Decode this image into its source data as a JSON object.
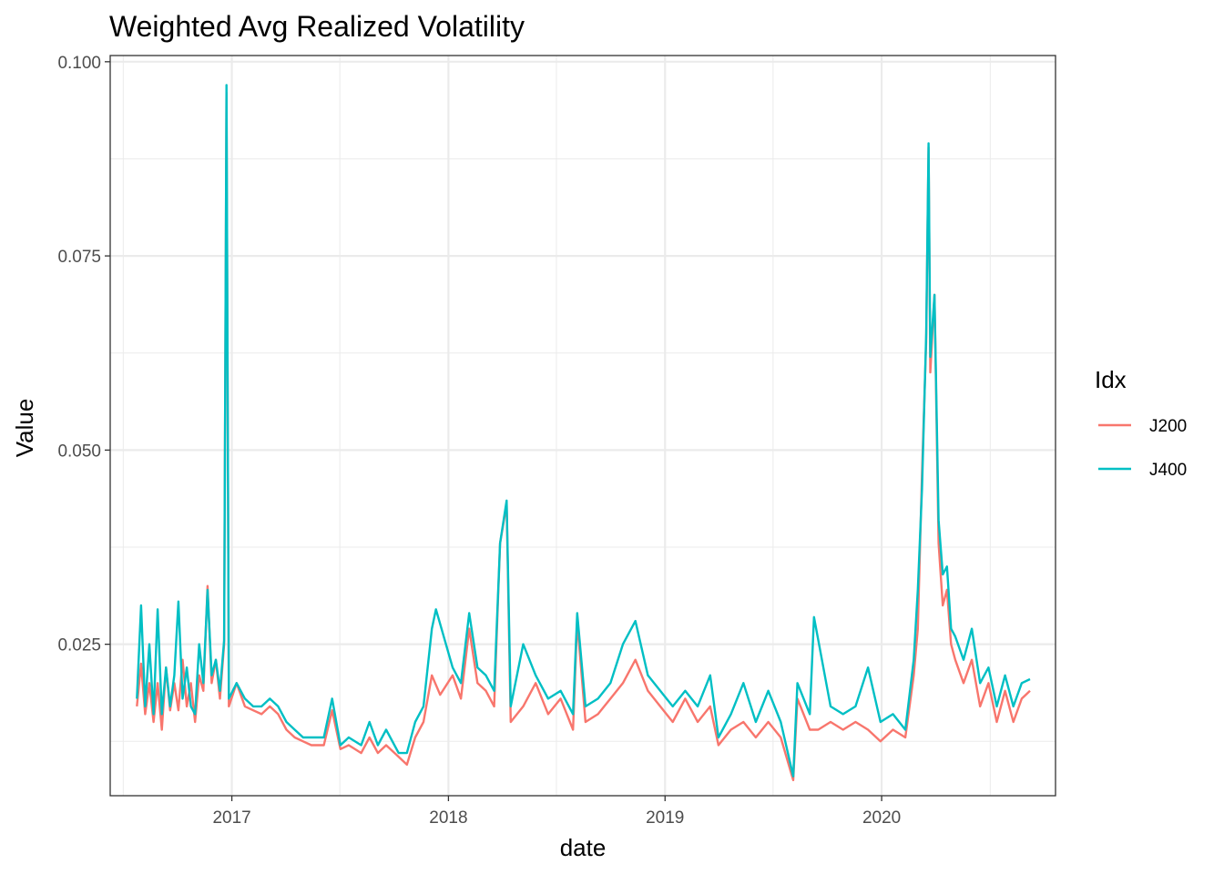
{
  "chart_data": {
    "type": "line",
    "title": "Weighted Avg Realized Volatility",
    "xlabel": "date",
    "ylabel": "Value",
    "xlim": [
      "2016-06-10",
      "2020-10-20"
    ],
    "ylim": [
      0.0055,
      0.1008
    ],
    "x_ticks": [
      {
        "date": "2017-01-01",
        "label": "2017"
      },
      {
        "date": "2018-01-01",
        "label": "2018"
      },
      {
        "date": "2019-01-01",
        "label": "2019"
      },
      {
        "date": "2020-01-01",
        "label": "2020"
      }
    ],
    "x_minor_dates": [
      "2016-07-02",
      "2017-07-02",
      "2018-07-02",
      "2019-07-02",
      "2020-07-02"
    ],
    "y_ticks": [
      {
        "value": 0.025,
        "label": "0.025"
      },
      {
        "value": 0.05,
        "label": "0.050"
      },
      {
        "value": 0.075,
        "label": "0.075"
      },
      {
        "value": 0.1,
        "label": "0.100"
      }
    ],
    "y_minor": [
      0.0125,
      0.0375,
      0.0625,
      0.0875
    ],
    "grid": true,
    "legend": {
      "title": "Idx",
      "placement": "right"
    },
    "series": [
      {
        "name": "J200",
        "color": "#F8766D",
        "points": [
          [
            "2016-07-25",
            0.017
          ],
          [
            "2016-08-01",
            0.0225
          ],
          [
            "2016-08-08",
            0.016
          ],
          [
            "2016-08-15",
            0.02
          ],
          [
            "2016-08-22",
            0.015
          ],
          [
            "2016-08-29",
            0.02
          ],
          [
            "2016-09-05",
            0.014
          ],
          [
            "2016-09-12",
            0.022
          ],
          [
            "2016-09-19",
            0.0165
          ],
          [
            "2016-09-26",
            0.02
          ],
          [
            "2016-10-03",
            0.0165
          ],
          [
            "2016-10-10",
            0.023
          ],
          [
            "2016-10-17",
            0.017
          ],
          [
            "2016-10-24",
            0.02
          ],
          [
            "2016-10-31",
            0.015
          ],
          [
            "2016-11-07",
            0.021
          ],
          [
            "2016-11-14",
            0.019
          ],
          [
            "2016-11-21",
            0.0325
          ],
          [
            "2016-11-28",
            0.02
          ],
          [
            "2016-12-05",
            0.023
          ],
          [
            "2016-12-12",
            0.018
          ],
          [
            "2016-12-19",
            0.025
          ],
          [
            "2016-12-23",
            0.096
          ],
          [
            "2016-12-27",
            0.017
          ],
          [
            "2017-01-09",
            0.02
          ],
          [
            "2017-01-23",
            0.017
          ],
          [
            "2017-02-06",
            0.0165
          ],
          [
            "2017-02-20",
            0.016
          ],
          [
            "2017-03-06",
            0.017
          ],
          [
            "2017-03-20",
            0.016
          ],
          [
            "2017-04-03",
            0.014
          ],
          [
            "2017-04-17",
            0.013
          ],
          [
            "2017-05-01",
            0.0125
          ],
          [
            "2017-05-15",
            0.012
          ],
          [
            "2017-06-05",
            0.012
          ],
          [
            "2017-06-19",
            0.0165
          ],
          [
            "2017-07-03",
            0.0115
          ],
          [
            "2017-07-17",
            0.012
          ],
          [
            "2017-08-07",
            0.011
          ],
          [
            "2017-08-21",
            0.013
          ],
          [
            "2017-09-04",
            0.011
          ],
          [
            "2017-09-18",
            0.012
          ],
          [
            "2017-10-09",
            0.0105
          ],
          [
            "2017-10-23",
            0.0095
          ],
          [
            "2017-11-06",
            0.013
          ],
          [
            "2017-11-20",
            0.015
          ],
          [
            "2017-12-04",
            0.021
          ],
          [
            "2017-12-18",
            0.0185
          ],
          [
            "2018-01-08",
            0.021
          ],
          [
            "2018-01-22",
            0.018
          ],
          [
            "2018-02-05",
            0.027
          ],
          [
            "2018-02-19",
            0.02
          ],
          [
            "2018-03-05",
            0.019
          ],
          [
            "2018-03-19",
            0.017
          ],
          [
            "2018-03-29",
            0.038
          ],
          [
            "2018-04-09",
            0.043
          ],
          [
            "2018-04-16",
            0.015
          ],
          [
            "2018-05-07",
            0.017
          ],
          [
            "2018-05-28",
            0.02
          ],
          [
            "2018-06-18",
            0.016
          ],
          [
            "2018-07-09",
            0.018
          ],
          [
            "2018-07-30",
            0.014
          ],
          [
            "2018-08-06",
            0.028
          ],
          [
            "2018-08-20",
            0.015
          ],
          [
            "2018-09-10",
            0.016
          ],
          [
            "2018-10-01",
            0.018
          ],
          [
            "2018-10-22",
            0.02
          ],
          [
            "2018-11-12",
            0.023
          ],
          [
            "2018-12-03",
            0.019
          ],
          [
            "2018-12-24",
            0.017
          ],
          [
            "2019-01-14",
            0.015
          ],
          [
            "2019-02-04",
            0.018
          ],
          [
            "2019-02-25",
            0.015
          ],
          [
            "2019-03-18",
            0.017
          ],
          [
            "2019-04-01",
            0.012
          ],
          [
            "2019-04-22",
            0.014
          ],
          [
            "2019-05-13",
            0.015
          ],
          [
            "2019-06-03",
            0.013
          ],
          [
            "2019-06-24",
            0.015
          ],
          [
            "2019-07-15",
            0.013
          ],
          [
            "2019-08-05",
            0.0075
          ],
          [
            "2019-08-12",
            0.018
          ],
          [
            "2019-09-02",
            0.014
          ],
          [
            "2019-09-16",
            0.014
          ],
          [
            "2019-10-07",
            0.015
          ],
          [
            "2019-10-28",
            0.014
          ],
          [
            "2019-11-18",
            0.015
          ],
          [
            "2019-12-09",
            0.014
          ],
          [
            "2019-12-30",
            0.0125
          ],
          [
            "2020-01-20",
            0.014
          ],
          [
            "2020-02-10",
            0.013
          ],
          [
            "2020-02-24",
            0.021
          ],
          [
            "2020-03-02",
            0.027
          ],
          [
            "2020-03-09",
            0.047
          ],
          [
            "2020-03-16",
            0.064
          ],
          [
            "2020-03-20",
            0.089
          ],
          [
            "2020-03-23",
            0.06
          ],
          [
            "2020-03-30",
            0.07
          ],
          [
            "2020-04-06",
            0.038
          ],
          [
            "2020-04-13",
            0.03
          ],
          [
            "2020-04-20",
            0.032
          ],
          [
            "2020-04-27",
            0.025
          ],
          [
            "2020-05-04",
            0.023
          ],
          [
            "2020-05-18",
            0.02
          ],
          [
            "2020-06-01",
            0.023
          ],
          [
            "2020-06-15",
            0.017
          ],
          [
            "2020-06-29",
            0.02
          ],
          [
            "2020-07-13",
            0.015
          ],
          [
            "2020-07-27",
            0.019
          ],
          [
            "2020-08-10",
            0.015
          ],
          [
            "2020-08-24",
            0.018
          ],
          [
            "2020-09-07",
            0.019
          ]
        ]
      },
      {
        "name": "J400",
        "color": "#00BFC4",
        "points": [
          [
            "2016-07-25",
            0.018
          ],
          [
            "2016-08-01",
            0.03
          ],
          [
            "2016-08-08",
            0.017
          ],
          [
            "2016-08-15",
            0.025
          ],
          [
            "2016-08-22",
            0.016
          ],
          [
            "2016-08-29",
            0.0295
          ],
          [
            "2016-09-05",
            0.016
          ],
          [
            "2016-09-12",
            0.022
          ],
          [
            "2016-09-19",
            0.017
          ],
          [
            "2016-09-26",
            0.021
          ],
          [
            "2016-10-03",
            0.0305
          ],
          [
            "2016-10-10",
            0.018
          ],
          [
            "2016-10-17",
            0.022
          ],
          [
            "2016-10-24",
            0.017
          ],
          [
            "2016-10-31",
            0.016
          ],
          [
            "2016-11-07",
            0.025
          ],
          [
            "2016-11-14",
            0.02
          ],
          [
            "2016-11-21",
            0.032
          ],
          [
            "2016-11-28",
            0.021
          ],
          [
            "2016-12-05",
            0.023
          ],
          [
            "2016-12-12",
            0.019
          ],
          [
            "2016-12-19",
            0.0255
          ],
          [
            "2016-12-23",
            0.097
          ],
          [
            "2016-12-27",
            0.018
          ],
          [
            "2017-01-09",
            0.02
          ],
          [
            "2017-01-23",
            0.018
          ],
          [
            "2017-02-06",
            0.017
          ],
          [
            "2017-02-20",
            0.017
          ],
          [
            "2017-03-06",
            0.018
          ],
          [
            "2017-03-20",
            0.017
          ],
          [
            "2017-04-03",
            0.015
          ],
          [
            "2017-04-17",
            0.014
          ],
          [
            "2017-05-01",
            0.013
          ],
          [
            "2017-05-15",
            0.013
          ],
          [
            "2017-06-05",
            0.013
          ],
          [
            "2017-06-19",
            0.018
          ],
          [
            "2017-07-03",
            0.012
          ],
          [
            "2017-07-17",
            0.013
          ],
          [
            "2017-08-07",
            0.012
          ],
          [
            "2017-08-21",
            0.015
          ],
          [
            "2017-09-04",
            0.012
          ],
          [
            "2017-09-18",
            0.014
          ],
          [
            "2017-10-09",
            0.011
          ],
          [
            "2017-10-23",
            0.011
          ],
          [
            "2017-11-06",
            0.015
          ],
          [
            "2017-11-20",
            0.017
          ],
          [
            "2017-12-04",
            0.027
          ],
          [
            "2017-12-11",
            0.0295
          ],
          [
            "2018-01-08",
            0.022
          ],
          [
            "2018-01-22",
            0.02
          ],
          [
            "2018-02-05",
            0.029
          ],
          [
            "2018-02-19",
            0.022
          ],
          [
            "2018-03-05",
            0.021
          ],
          [
            "2018-03-19",
            0.019
          ],
          [
            "2018-03-29",
            0.038
          ],
          [
            "2018-04-09",
            0.0435
          ],
          [
            "2018-04-16",
            0.017
          ],
          [
            "2018-05-07",
            0.025
          ],
          [
            "2018-05-28",
            0.021
          ],
          [
            "2018-06-18",
            0.018
          ],
          [
            "2018-07-09",
            0.019
          ],
          [
            "2018-07-30",
            0.016
          ],
          [
            "2018-08-06",
            0.029
          ],
          [
            "2018-08-20",
            0.017
          ],
          [
            "2018-09-10",
            0.018
          ],
          [
            "2018-10-01",
            0.02
          ],
          [
            "2018-10-22",
            0.025
          ],
          [
            "2018-11-12",
            0.028
          ],
          [
            "2018-12-03",
            0.021
          ],
          [
            "2018-12-24",
            0.019
          ],
          [
            "2019-01-14",
            0.017
          ],
          [
            "2019-02-04",
            0.019
          ],
          [
            "2019-02-25",
            0.017
          ],
          [
            "2019-03-18",
            0.021
          ],
          [
            "2019-04-01",
            0.013
          ],
          [
            "2019-04-22",
            0.016
          ],
          [
            "2019-05-13",
            0.02
          ],
          [
            "2019-06-03",
            0.015
          ],
          [
            "2019-06-24",
            0.019
          ],
          [
            "2019-07-15",
            0.015
          ],
          [
            "2019-08-05",
            0.008
          ],
          [
            "2019-08-12",
            0.02
          ],
          [
            "2019-09-02",
            0.016
          ],
          [
            "2019-09-09",
            0.0285
          ],
          [
            "2019-10-07",
            0.017
          ],
          [
            "2019-10-28",
            0.016
          ],
          [
            "2019-11-18",
            0.017
          ],
          [
            "2019-12-09",
            0.022
          ],
          [
            "2019-12-30",
            0.015
          ],
          [
            "2020-01-20",
            0.016
          ],
          [
            "2020-02-10",
            0.014
          ],
          [
            "2020-02-24",
            0.023
          ],
          [
            "2020-03-02",
            0.032
          ],
          [
            "2020-03-09",
            0.045
          ],
          [
            "2020-03-16",
            0.065
          ],
          [
            "2020-03-20",
            0.0895
          ],
          [
            "2020-03-23",
            0.062
          ],
          [
            "2020-03-30",
            0.07
          ],
          [
            "2020-04-06",
            0.041
          ],
          [
            "2020-04-13",
            0.034
          ],
          [
            "2020-04-20",
            0.035
          ],
          [
            "2020-04-27",
            0.027
          ],
          [
            "2020-05-04",
            0.026
          ],
          [
            "2020-05-18",
            0.023
          ],
          [
            "2020-06-01",
            0.027
          ],
          [
            "2020-06-15",
            0.02
          ],
          [
            "2020-06-29",
            0.022
          ],
          [
            "2020-07-13",
            0.017
          ],
          [
            "2020-07-27",
            0.021
          ],
          [
            "2020-08-10",
            0.017
          ],
          [
            "2020-08-24",
            0.02
          ],
          [
            "2020-09-07",
            0.0205
          ]
        ]
      }
    ]
  }
}
